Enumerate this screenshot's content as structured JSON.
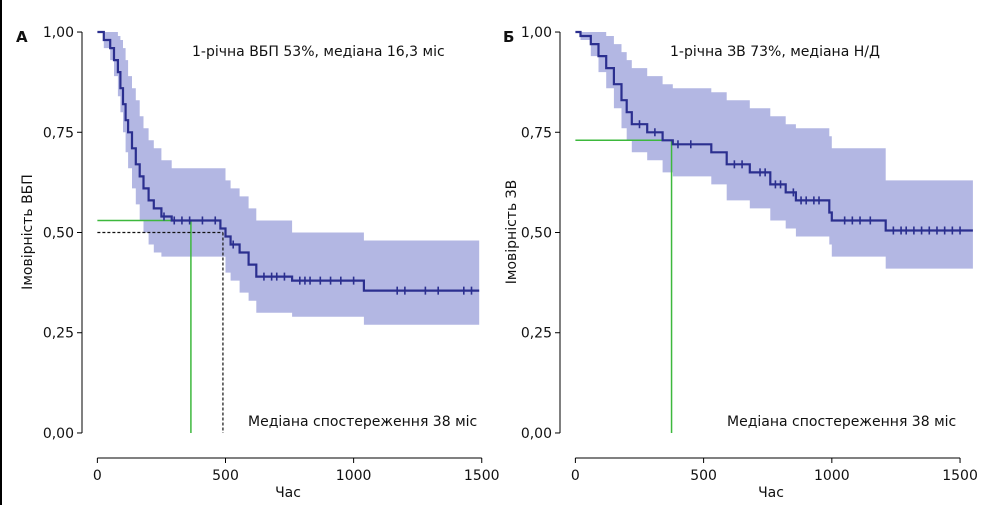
{
  "chart_data": [
    {
      "type": "line",
      "panel_label": "А",
      "annotation_top": "1-річна ВБП 53%, медіана 16,3 міс",
      "annotation_bottom": "Медіана спостереження 38 міс",
      "xlabel": "Час",
      "ylabel": "Імовірність ВБП",
      "xlim": [
        -60,
        1540
      ],
      "ylim": [
        -0.03,
        1.03
      ],
      "xticks": [
        0,
        500,
        1000,
        1500
      ],
      "xtick_labels": [
        "0",
        "500",
        "1000",
        "1500"
      ],
      "yticks": [
        0,
        0.25,
        0.5,
        0.75,
        1.0
      ],
      "ytick_labels": [
        "0,00",
        "0,25",
        "0,50",
        "0,75",
        "1,00"
      ],
      "colors": {
        "curve": "#2b2f8f",
        "ci": "#b3b7e3",
        "reference": "#3db83d",
        "median": "#111111"
      },
      "survival_curve": [
        [
          0,
          1.0
        ],
        [
          25,
          1.0
        ],
        [
          25,
          0.98
        ],
        [
          50,
          0.98
        ],
        [
          50,
          0.96
        ],
        [
          65,
          0.96
        ],
        [
          65,
          0.93
        ],
        [
          80,
          0.93
        ],
        [
          80,
          0.9
        ],
        [
          90,
          0.9
        ],
        [
          90,
          0.86
        ],
        [
          100,
          0.86
        ],
        [
          100,
          0.82
        ],
        [
          110,
          0.82
        ],
        [
          110,
          0.78
        ],
        [
          120,
          0.78
        ],
        [
          120,
          0.75
        ],
        [
          135,
          0.75
        ],
        [
          135,
          0.71
        ],
        [
          150,
          0.71
        ],
        [
          150,
          0.67
        ],
        [
          165,
          0.67
        ],
        [
          165,
          0.64
        ],
        [
          180,
          0.64
        ],
        [
          180,
          0.61
        ],
        [
          200,
          0.61
        ],
        [
          200,
          0.58
        ],
        [
          220,
          0.58
        ],
        [
          220,
          0.56
        ],
        [
          250,
          0.56
        ],
        [
          250,
          0.54
        ],
        [
          290,
          0.54
        ],
        [
          290,
          0.53
        ],
        [
          480,
          0.53
        ],
        [
          480,
          0.51
        ],
        [
          500,
          0.51
        ],
        [
          500,
          0.49
        ],
        [
          520,
          0.49
        ],
        [
          520,
          0.47
        ],
        [
          555,
          0.47
        ],
        [
          555,
          0.45
        ],
        [
          590,
          0.45
        ],
        [
          590,
          0.42
        ],
        [
          620,
          0.42
        ],
        [
          620,
          0.39
        ],
        [
          760,
          0.39
        ],
        [
          760,
          0.38
        ],
        [
          1040,
          0.38
        ],
        [
          1040,
          0.355
        ],
        [
          1490,
          0.355
        ]
      ],
      "ci_upper": [
        [
          0,
          1.0
        ],
        [
          25,
          1.0
        ],
        [
          50,
          1.0
        ],
        [
          65,
          1.0
        ],
        [
          80,
          0.99
        ],
        [
          90,
          0.98
        ],
        [
          100,
          0.96
        ],
        [
          110,
          0.93
        ],
        [
          120,
          0.89
        ],
        [
          135,
          0.86
        ],
        [
          150,
          0.83
        ],
        [
          165,
          0.79
        ],
        [
          180,
          0.76
        ],
        [
          200,
          0.73
        ],
        [
          220,
          0.71
        ],
        [
          250,
          0.68
        ],
        [
          290,
          0.66
        ],
        [
          480,
          0.66
        ],
        [
          500,
          0.63
        ],
        [
          520,
          0.61
        ],
        [
          555,
          0.59
        ],
        [
          590,
          0.56
        ],
        [
          620,
          0.53
        ],
        [
          760,
          0.5
        ],
        [
          1040,
          0.5
        ],
        [
          1040,
          0.48
        ],
        [
          1490,
          0.48
        ]
      ],
      "ci_lower": [
        [
          0,
          1.0
        ],
        [
          25,
          0.96
        ],
        [
          50,
          0.93
        ],
        [
          65,
          0.89
        ],
        [
          80,
          0.84
        ],
        [
          90,
          0.8
        ],
        [
          100,
          0.75
        ],
        [
          110,
          0.7
        ],
        [
          120,
          0.66
        ],
        [
          135,
          0.61
        ],
        [
          150,
          0.57
        ],
        [
          165,
          0.53
        ],
        [
          180,
          0.5
        ],
        [
          200,
          0.47
        ],
        [
          220,
          0.45
        ],
        [
          250,
          0.44
        ],
        [
          290,
          0.44
        ],
        [
          480,
          0.44
        ],
        [
          500,
          0.4
        ],
        [
          520,
          0.38
        ],
        [
          555,
          0.35
        ],
        [
          590,
          0.33
        ],
        [
          620,
          0.3
        ],
        [
          760,
          0.29
        ],
        [
          1040,
          0.27
        ],
        [
          1490,
          0.27
        ]
      ],
      "censor_times": [
        260,
        300,
        330,
        360,
        410,
        460,
        530,
        650,
        680,
        700,
        730,
        790,
        810,
        830,
        870,
        910,
        950,
        1000,
        1170,
        1200,
        1280,
        1330,
        1430,
        1460
      ],
      "reference_line": {
        "x": 365,
        "y": 0.53
      },
      "median_line": {
        "x": 490,
        "y": 0.5
      }
    },
    {
      "type": "line",
      "panel_label": "Б",
      "annotation_top": "1-річна ЗВ 73%, медіана Н/Д",
      "annotation_bottom": "Медіана спостереження 38 міс",
      "xlabel": "Час",
      "ylabel": "Імовірність ЗВ",
      "xlim": [
        -60,
        1570
      ],
      "ylim": [
        -0.03,
        1.03
      ],
      "xticks": [
        0,
        500,
        1000,
        1500
      ],
      "xtick_labels": [
        "0",
        "500",
        "1000",
        "1500"
      ],
      "yticks": [
        0,
        0.25,
        0.5,
        0.75,
        1.0
      ],
      "ytick_labels": [
        "0,00",
        "0,25",
        "0,50",
        "0,75",
        "1,00"
      ],
      "colors": {
        "curve": "#2b2f8f",
        "ci": "#b3b7e3",
        "reference": "#3db83d"
      },
      "survival_curve": [
        [
          0,
          1.0
        ],
        [
          20,
          1.0
        ],
        [
          20,
          0.99
        ],
        [
          60,
          0.99
        ],
        [
          60,
          0.97
        ],
        [
          90,
          0.97
        ],
        [
          90,
          0.94
        ],
        [
          120,
          0.94
        ],
        [
          120,
          0.91
        ],
        [
          150,
          0.91
        ],
        [
          150,
          0.87
        ],
        [
          180,
          0.87
        ],
        [
          180,
          0.83
        ],
        [
          200,
          0.83
        ],
        [
          200,
          0.8
        ],
        [
          220,
          0.8
        ],
        [
          220,
          0.77
        ],
        [
          280,
          0.77
        ],
        [
          280,
          0.75
        ],
        [
          340,
          0.75
        ],
        [
          340,
          0.73
        ],
        [
          380,
          0.73
        ],
        [
          380,
          0.72
        ],
        [
          530,
          0.72
        ],
        [
          530,
          0.7
        ],
        [
          590,
          0.7
        ],
        [
          590,
          0.67
        ],
        [
          680,
          0.67
        ],
        [
          680,
          0.65
        ],
        [
          760,
          0.65
        ],
        [
          760,
          0.62
        ],
        [
          820,
          0.62
        ],
        [
          820,
          0.6
        ],
        [
          860,
          0.6
        ],
        [
          860,
          0.58
        ],
        [
          990,
          0.58
        ],
        [
          990,
          0.55
        ],
        [
          1000,
          0.55
        ],
        [
          1000,
          0.53
        ],
        [
          1210,
          0.53
        ],
        [
          1210,
          0.505
        ],
        [
          1550,
          0.505
        ]
      ],
      "ci_upper": [
        [
          0,
          1.0
        ],
        [
          20,
          1.0
        ],
        [
          60,
          1.0
        ],
        [
          90,
          1.0
        ],
        [
          120,
          0.99
        ],
        [
          150,
          0.97
        ],
        [
          180,
          0.95
        ],
        [
          200,
          0.93
        ],
        [
          220,
          0.91
        ],
        [
          280,
          0.89
        ],
        [
          340,
          0.87
        ],
        [
          380,
          0.86
        ],
        [
          530,
          0.85
        ],
        [
          590,
          0.83
        ],
        [
          680,
          0.81
        ],
        [
          760,
          0.79
        ],
        [
          820,
          0.77
        ],
        [
          860,
          0.76
        ],
        [
          990,
          0.74
        ],
        [
          1000,
          0.71
        ],
        [
          1210,
          0.69
        ],
        [
          1210,
          0.63
        ],
        [
          1550,
          0.63
        ]
      ],
      "ci_lower": [
        [
          0,
          1.0
        ],
        [
          20,
          0.98
        ],
        [
          60,
          0.94
        ],
        [
          90,
          0.9
        ],
        [
          120,
          0.86
        ],
        [
          150,
          0.81
        ],
        [
          180,
          0.76
        ],
        [
          200,
          0.73
        ],
        [
          220,
          0.7
        ],
        [
          280,
          0.68
        ],
        [
          340,
          0.65
        ],
        [
          380,
          0.64
        ],
        [
          530,
          0.62
        ],
        [
          590,
          0.58
        ],
        [
          680,
          0.56
        ],
        [
          760,
          0.53
        ],
        [
          820,
          0.51
        ],
        [
          860,
          0.49
        ],
        [
          990,
          0.47
        ],
        [
          1000,
          0.44
        ],
        [
          1210,
          0.41
        ],
        [
          1550,
          0.41
        ]
      ],
      "censor_times": [
        250,
        310,
        400,
        450,
        620,
        650,
        720,
        740,
        780,
        800,
        850,
        880,
        900,
        930,
        950,
        1050,
        1080,
        1110,
        1150,
        1240,
        1270,
        1290,
        1320,
        1350,
        1380,
        1410,
        1440,
        1470,
        1500
      ],
      "reference_line": {
        "x": 375,
        "y": 0.73
      }
    }
  ]
}
